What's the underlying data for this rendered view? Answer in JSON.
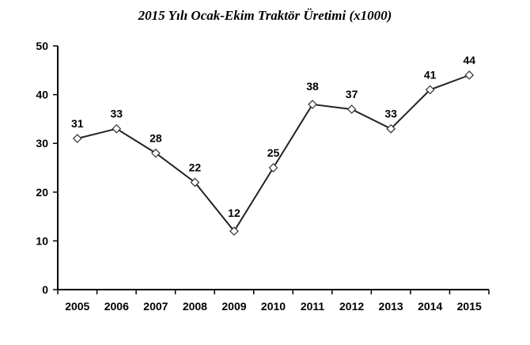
{
  "chart_data": {
    "type": "line",
    "title": "2015 Yılı Ocak-Ekim Traktör Üretimi (x1000)",
    "xlabel": "",
    "ylabel": "",
    "categories": [
      "2005",
      "2006",
      "2007",
      "2008",
      "2009",
      "2010",
      "2011",
      "2012",
      "2013",
      "2014",
      "2015"
    ],
    "series": [
      {
        "values": [
          31,
          33,
          28,
          22,
          12,
          25,
          38,
          37,
          33,
          41,
          44
        ]
      }
    ],
    "data_labels": [
      "31",
      "33",
      "28",
      "22",
      "12",
      "25",
      "38",
      "37",
      "33",
      "41",
      "44"
    ],
    "ylim": [
      0,
      50
    ],
    "yticks": [
      0,
      10,
      20,
      30,
      40,
      50
    ],
    "grid": false,
    "legend": "none",
    "marker": "diamond-open",
    "line_color": "#222222"
  }
}
